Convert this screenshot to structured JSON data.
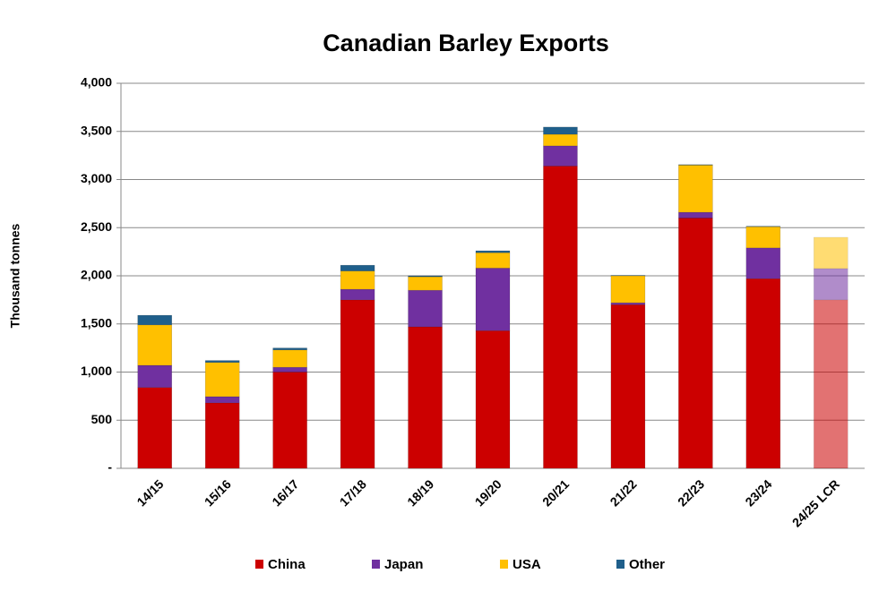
{
  "chart_data": {
    "type": "stacked_bar",
    "title": "Canadian Barley Exports",
    "y_label": "Thousand tonnes",
    "categories": [
      "14/15",
      "15/16",
      "16/17",
      "17/18",
      "18/19",
      "19/20",
      "20/21",
      "21/22",
      "22/23",
      "23/24",
      "24/25 LCR"
    ],
    "series": [
      {
        "name": "China",
        "color": "#cc0000",
        "values": [
          840,
          680,
          1000,
          1750,
          1470,
          1430,
          3140,
          1700,
          2600,
          1970,
          1750
        ]
      },
      {
        "name": "Japan",
        "color": "#7030a0",
        "values": [
          230,
          65,
          50,
          110,
          380,
          650,
          210,
          20,
          60,
          320,
          325
        ]
      },
      {
        "name": "USA",
        "color": "#ffc000",
        "values": [
          420,
          355,
          180,
          190,
          140,
          160,
          120,
          280,
          490,
          220,
          325
        ]
      },
      {
        "name": "Other",
        "color": "#1f5f8b",
        "values": [
          100,
          20,
          20,
          60,
          10,
          20,
          75,
          5,
          5,
          5,
          0
        ]
      }
    ],
    "ylim": [
      0,
      4000
    ],
    "yticks": [
      {
        "value": 0,
        "label": "-"
      },
      {
        "value": 500,
        "label": "500"
      },
      {
        "value": 1000,
        "label": "1,000"
      },
      {
        "value": 1500,
        "label": "1,500"
      },
      {
        "value": 2000,
        "label": "2,000"
      },
      {
        "value": 2500,
        "label": "2,500"
      },
      {
        "value": 3000,
        "label": "3,000"
      },
      {
        "value": 3500,
        "label": "3,500"
      },
      {
        "value": 4000,
        "label": "4,000"
      }
    ],
    "grid": true
  }
}
